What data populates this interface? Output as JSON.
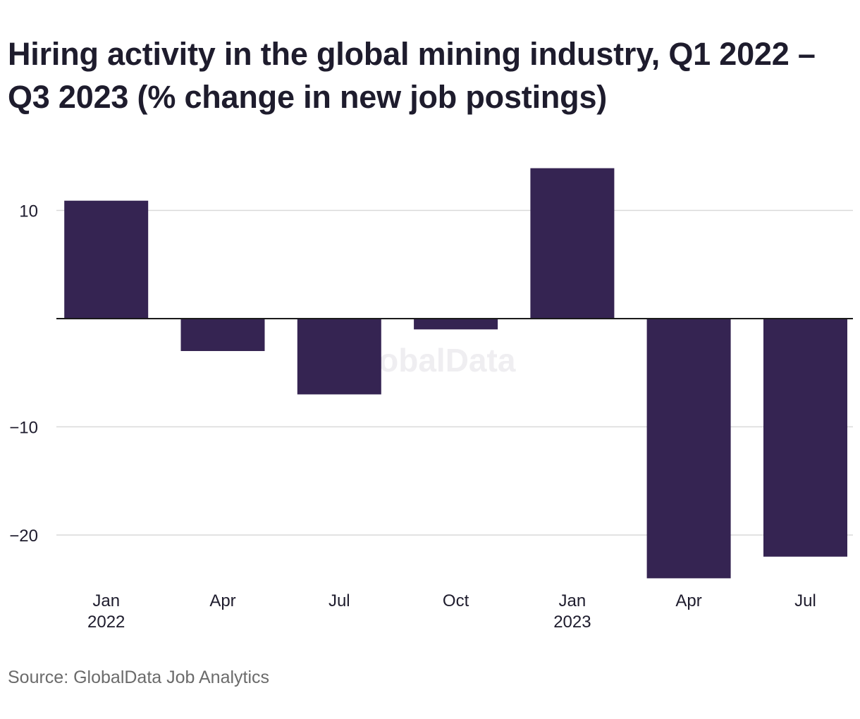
{
  "title": "Hiring activity in the global mining industry, Q1 2022 – Q3 2023 (% change in new job postings)",
  "source": "Source: GlobalData Job Analytics",
  "watermark": "GlobalData",
  "colors": {
    "bar": "#352452",
    "grid": "#d9d9d9",
    "zero_line": "#1a1a1a",
    "watermark": "#efeef1"
  },
  "chart_data": {
    "type": "bar",
    "categories": [
      "Jan 2022",
      "Apr 2022",
      "Jul 2022",
      "Oct 2022",
      "Jan 2023",
      "Apr 2023",
      "Jul 2023"
    ],
    "tick_labels": [
      {
        "line1": "Jan",
        "line2": "2022"
      },
      {
        "line1": "Apr",
        "line2": ""
      },
      {
        "line1": "Jul",
        "line2": ""
      },
      {
        "line1": "Oct",
        "line2": ""
      },
      {
        "line1": "Jan",
        "line2": "2023"
      },
      {
        "line1": "Apr",
        "line2": ""
      },
      {
        "line1": "Jul",
        "line2": ""
      }
    ],
    "values": [
      10.9,
      -3.0,
      -7.0,
      -1.0,
      13.9,
      -24.0,
      -22.0
    ],
    "y_ticks": [
      10,
      0,
      -10,
      -20
    ],
    "y_tick_labels": [
      "10",
      "",
      "−10",
      "−20"
    ],
    "ylim": [
      -24,
      13.9
    ],
    "grid": true
  }
}
